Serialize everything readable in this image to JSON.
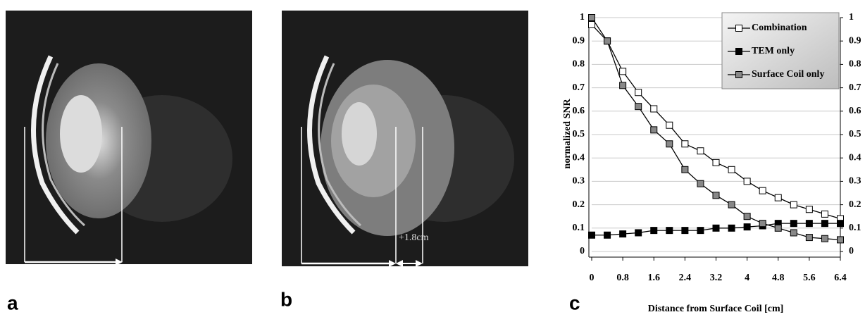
{
  "panel_labels": [
    "a",
    "b",
    "c"
  ],
  "annotation": "+1.8cm",
  "chart_data": {
    "type": "line",
    "x_label": "Distance from Surface Coil [cm]",
    "y_label": "normalized SNR",
    "x": [
      0,
      0.4,
      0.8,
      1.2,
      1.6,
      2.0,
      2.4,
      2.8,
      3.2,
      3.6,
      4.0,
      4.4,
      4.8,
      5.2,
      5.6,
      6.0,
      6.4
    ],
    "series": [
      {
        "name": "Combination",
        "color": "#ffffff",
        "values": [
          0.97,
          0.9,
          0.77,
          0.68,
          0.61,
          0.54,
          0.46,
          0.43,
          0.38,
          0.35,
          0.3,
          0.26,
          0.23,
          0.2,
          0.18,
          0.16,
          0.14
        ]
      },
      {
        "name": "TEM only",
        "color": "#000000",
        "values": [
          0.07,
          0.07,
          0.075,
          0.08,
          0.09,
          0.09,
          0.09,
          0.09,
          0.1,
          0.1,
          0.105,
          0.11,
          0.12,
          0.12,
          0.12,
          0.12,
          0.12
        ]
      },
      {
        "name": "Surface Coil only",
        "color": "#888888",
        "values": [
          1.0,
          0.9,
          0.71,
          0.62,
          0.52,
          0.46,
          0.35,
          0.29,
          0.24,
          0.2,
          0.15,
          0.12,
          0.1,
          0.08,
          0.06,
          0.055,
          0.05
        ]
      }
    ],
    "xlim": [
      0,
      6.4
    ],
    "xticks": [
      0,
      0.8,
      1.6,
      2.4,
      3.2,
      4,
      4.8,
      5.6,
      6.4
    ],
    "ylim": [
      0,
      1
    ],
    "yticks": [
      0,
      0.1,
      0.2,
      0.3,
      0.4,
      0.5,
      0.6,
      0.7,
      0.8,
      0.9,
      1
    ],
    "y2lim": [
      0,
      1
    ],
    "y2ticks": [
      0,
      0.1,
      0.2,
      0.3,
      0.4,
      0.5,
      0.6,
      0.7,
      0.8,
      0.9,
      1
    ],
    "grid": true,
    "legend": "top-right"
  }
}
